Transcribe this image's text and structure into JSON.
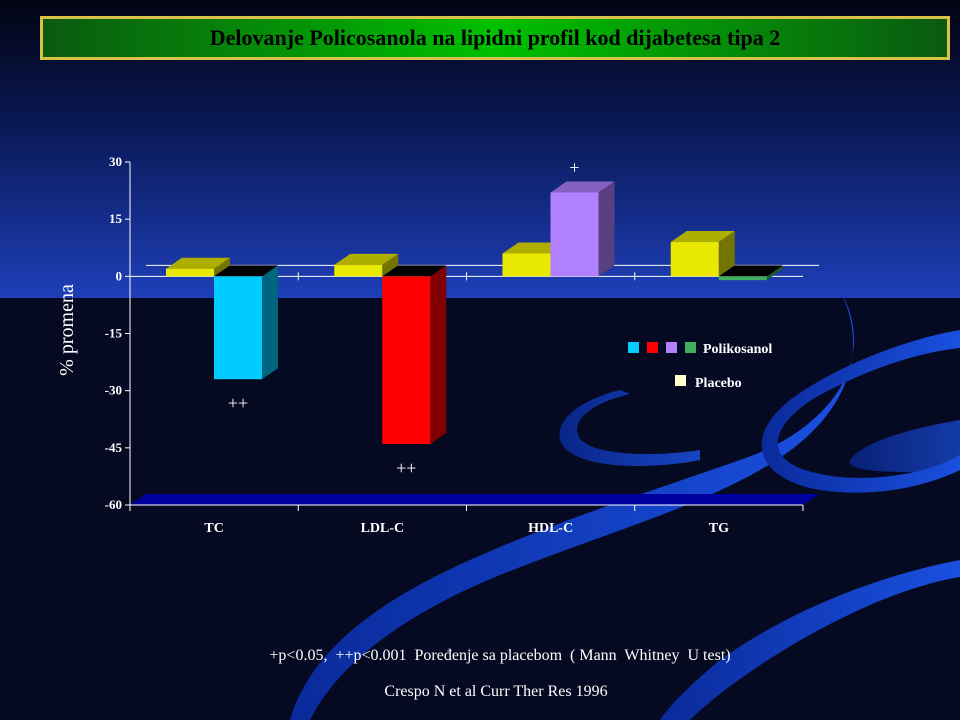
{
  "title": "Delovanje Policosanola na lipidni profil kod dijabetesa tipa 2",
  "chart_data": {
    "type": "bar",
    "categories": [
      "TC",
      "LDL-C",
      "HDL-C",
      "TG"
    ],
    "series": [
      {
        "name": "Placebo",
        "values": [
          2,
          3,
          6,
          9
        ]
      },
      {
        "name": "Polikosanol",
        "values": [
          -27,
          -44,
          22,
          -1
        ]
      }
    ],
    "polikosanol_colors": [
      "#00ccff",
      "#ff0000",
      "#b080ff",
      "#40b060"
    ],
    "placebo_color": "#e8e800",
    "floor_color": "#0000a0",
    "ylabel": "% promena",
    "ylim": [
      -60,
      30
    ],
    "yticks": [
      30,
      15,
      0,
      -15,
      -30,
      -45,
      -60
    ],
    "annotations": [
      "++",
      "++",
      "+",
      ""
    ],
    "legend": {
      "polikosanol_label": "Polikosanol",
      "placebo_label": "Placebo",
      "position": "right"
    }
  },
  "footnote": "+p<0.05,  ++p<0.001  Poređenje sa placebom  ( Mann  Whitney  U test)",
  "citation": "Crespo N et al Curr Ther Res 1996"
}
